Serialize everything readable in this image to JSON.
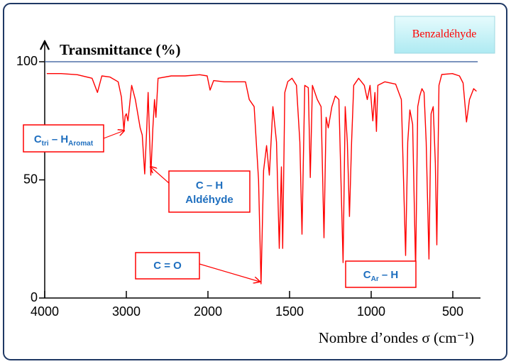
{
  "chart_data": {
    "type": "line",
    "title": "Benzaldéhyde",
    "y_label": "Transmittance (%)",
    "x_label": "Nombre d’ondes σ (cm⁻¹)",
    "xlim": [
      4000,
      330
    ],
    "xticks": [
      4000,
      3000,
      2000,
      1500,
      1000,
      500
    ],
    "ylim": [
      0,
      100
    ],
    "yticks": [
      0,
      50,
      100
    ],
    "reference_line": 100,
    "series": [
      {
        "name": "Benzaldéhyde",
        "color": "#ff0000",
        "x": [
          3975,
          3800,
          3600,
          3420,
          3354,
          3300,
          3200,
          3100,
          3060,
          3030,
          3015,
          3000,
          2980,
          2935,
          2890,
          2830,
          2805,
          2775,
          2750,
          2733,
          2700,
          2675,
          2655,
          2637,
          2611,
          2450,
          2280,
          2100,
          2010,
          1987,
          1965,
          1900,
          1770,
          1747,
          1717,
          1690,
          1675,
          1659,
          1641,
          1624,
          1602,
          1580,
          1563,
          1550,
          1542,
          1529,
          1511,
          1485,
          1458,
          1437,
          1424,
          1407,
          1385,
          1373,
          1360,
          1330,
          1307,
          1289,
          1276,
          1263,
          1241,
          1220,
          1198,
          1172,
          1159,
          1146,
          1133,
          1120,
          1107,
          1077,
          1042,
          1024,
          1007,
          990,
          977,
          968,
          959,
          916,
          850,
          815,
          789,
          776,
          763,
          746,
          728,
          715,
          702,
          689,
          676,
          663,
          646,
          633,
          620,
          607,
          598,
          585,
          568,
          503,
          459,
          437,
          416,
          398,
          372,
          355
        ],
        "values": [
          95,
          95,
          94.5,
          93,
          87,
          94,
          93.5,
          91.5,
          85,
          71,
          77,
          78,
          75,
          90,
          84,
          72,
          69,
          52.5,
          72,
          87,
          52,
          72,
          84,
          76.5,
          93,
          94,
          94,
          94.5,
          94,
          88,
          92,
          91.5,
          91.5,
          84,
          81,
          50,
          6,
          54,
          64.5,
          52,
          81,
          66,
          21,
          55.5,
          21,
          87,
          91.6,
          93,
          90,
          66,
          27,
          90,
          89,
          51,
          90,
          84,
          81,
          25.5,
          76.5,
          72,
          81,
          85.5,
          84,
          15,
          81,
          66,
          34.5,
          66,
          90,
          93,
          90,
          84,
          90,
          75,
          87,
          70.5,
          90,
          91.5,
          90.5,
          84,
          18,
          66,
          79.6,
          73.5,
          12,
          81,
          85.6,
          88.6,
          87,
          66,
          16.5,
          78,
          81,
          57,
          22.5,
          90,
          94.6,
          95,
          94,
          91,
          74.5,
          84,
          88.6,
          87.5
        ]
      }
    ],
    "annotations": [
      {
        "label": [
          {
            "text": "C"
          },
          {
            "text": "tri",
            "sub": true
          },
          {
            "text": " – H"
          },
          {
            "text": "Aromat",
            "sub": true
          }
        ]
      },
      {
        "label": [
          {
            "text": "C – H"
          }
        ],
        "label2": "Aldéhyde"
      },
      {
        "label": [
          {
            "text": "C = O"
          }
        ]
      },
      {
        "label": [
          {
            "text": "C"
          },
          {
            "text": "Ar",
            "sub": true
          },
          {
            "text": " – H"
          }
        ]
      }
    ]
  }
}
